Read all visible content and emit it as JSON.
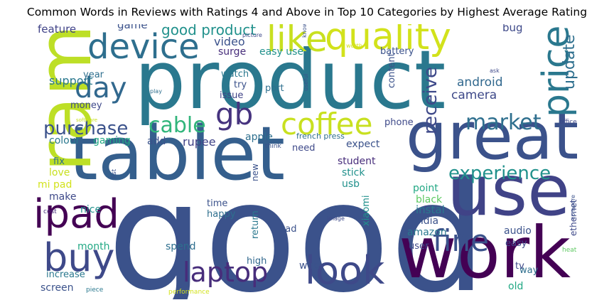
{
  "title": "Common Words in Reviews with Ratings 4 and Above in Top 10 Categories by Highest Average Rating",
  "words": [
    {
      "text": "good",
      "color": "#3b528b"
    },
    {
      "text": "product",
      "color": "#2a788e"
    },
    {
      "text": "tablet",
      "color": "#355f8d"
    },
    {
      "text": "work",
      "color": "#440154"
    },
    {
      "text": "use",
      "color": "#404387"
    },
    {
      "text": "great",
      "color": "#3b528b"
    },
    {
      "text": "ram",
      "color": "#bddf26"
    },
    {
      "text": "quality",
      "color": "#d2e21b"
    },
    {
      "text": "like",
      "color": "#c8e020"
    },
    {
      "text": "device",
      "color": "#2e6f8e"
    },
    {
      "text": "price",
      "color": "#2a788e"
    },
    {
      "text": "ipad",
      "color": "#440154"
    },
    {
      "text": "buy",
      "color": "#3e4989"
    },
    {
      "text": "laptop",
      "color": "#472d7b"
    },
    {
      "text": "look",
      "color": "#3e4989"
    },
    {
      "text": "coffee",
      "color": "#c8e020"
    },
    {
      "text": "day",
      "color": "#31688e"
    },
    {
      "text": "gb",
      "color": "#46337f"
    },
    {
      "text": "fine",
      "color": "#3b528b"
    },
    {
      "text": "cable",
      "color": "#31b57b"
    },
    {
      "text": "experience",
      "color": "#21918c"
    },
    {
      "text": "market",
      "color": "#2e6f8e"
    },
    {
      "text": "receive",
      "color": "#3e4989"
    },
    {
      "text": "purchase",
      "color": "#3b528b"
    },
    {
      "text": "update",
      "color": "#2e6f8e"
    },
    {
      "text": "good product",
      "color": "#21918c"
    },
    {
      "text": "android",
      "color": "#31688e"
    },
    {
      "text": "camera",
      "color": "#3e4989"
    },
    {
      "text": "support",
      "color": "#2a788e"
    },
    {
      "text": "feature",
      "color": "#404387"
    },
    {
      "text": "game",
      "color": "#3b528b"
    },
    {
      "text": "video",
      "color": "#3b528b"
    },
    {
      "text": "bug",
      "color": "#3e4989"
    },
    {
      "text": "surge",
      "color": "#472d7b"
    },
    {
      "text": "easy use",
      "color": "#21918c"
    },
    {
      "text": "battery",
      "color": "#3b528b"
    },
    {
      "text": "year",
      "color": "#2e6f8e"
    },
    {
      "text": "money",
      "color": "#3e4989"
    },
    {
      "text": "watch",
      "color": "#2a788e"
    },
    {
      "text": "try",
      "color": "#3b528b"
    },
    {
      "text": "issue",
      "color": "#404387"
    },
    {
      "text": "port",
      "color": "#2e6f8e"
    },
    {
      "text": "content",
      "color": "#3b528b"
    },
    {
      "text": "phone",
      "color": "#3e4989"
    },
    {
      "text": "colour",
      "color": "#2a788e"
    },
    {
      "text": "gaming",
      "color": "#22a884"
    },
    {
      "text": "add",
      "color": "#3b528b"
    },
    {
      "text": "rupee",
      "color": "#404387"
    },
    {
      "text": "apple",
      "color": "#2e6f8e"
    },
    {
      "text": "need",
      "color": "#3e4989"
    },
    {
      "text": "expect",
      "color": "#3b528b"
    },
    {
      "text": "fix",
      "color": "#2e6f8e"
    },
    {
      "text": "love",
      "color": "#c8e020"
    },
    {
      "text": "mi pad",
      "color": "#d2e21b"
    },
    {
      "text": "student",
      "color": "#472d7b"
    },
    {
      "text": "stick",
      "color": "#21918c"
    },
    {
      "text": "usb",
      "color": "#21918c"
    },
    {
      "text": "make",
      "color": "#3e4989"
    },
    {
      "text": "point",
      "color": "#22a884"
    },
    {
      "text": "black",
      "color": "#5ec962"
    },
    {
      "text": "instal",
      "color": "#2a788e"
    },
    {
      "text": "nice",
      "color": "#21918c"
    },
    {
      "text": "time",
      "color": "#3b528b"
    },
    {
      "text": "happy",
      "color": "#2e6f8e"
    },
    {
      "text": "india",
      "color": "#3b528b"
    },
    {
      "text": "amazon",
      "color": "#2a788e"
    },
    {
      "text": "audio",
      "color": "#3b528b"
    },
    {
      "text": "easy",
      "color": "#3e4989"
    },
    {
      "text": "month",
      "color": "#22a884"
    },
    {
      "text": "spend",
      "color": "#2e6f8e"
    },
    {
      "text": "bad",
      "color": "#3b528b"
    },
    {
      "text": "xiaomi",
      "color": "#21918c"
    },
    {
      "text": "user",
      "color": "#3e4989"
    },
    {
      "text": "return",
      "color": "#2a788e"
    },
    {
      "text": "high",
      "color": "#31688e"
    },
    {
      "text": "wire",
      "color": "#3b528b"
    },
    {
      "text": "tv",
      "color": "#3e4989"
    },
    {
      "text": "way",
      "color": "#2e6f8e"
    },
    {
      "text": "old",
      "color": "#22a884"
    },
    {
      "text": "increase",
      "color": "#2a788e"
    },
    {
      "text": "screen",
      "color": "#3b528b"
    },
    {
      "text": "new",
      "color": "#3b528b"
    },
    {
      "text": "ethernet",
      "color": "#3e4989"
    },
    {
      "text": "french press",
      "color": "#2e6f8e"
    },
    {
      "text": "think",
      "color": "#3b528b"
    },
    {
      "text": "list",
      "color": "#3b528b"
    },
    {
      "text": "image",
      "color": "#3e4989"
    },
    {
      "text": "compare",
      "color": "#3b528b"
    },
    {
      "text": "cost",
      "color": "#472d7b"
    },
    {
      "text": "piece",
      "color": "#2a788e"
    },
    {
      "text": "performance",
      "color": "#d2e21b"
    },
    {
      "text": "heat",
      "color": "#5ec962"
    },
    {
      "text": "office",
      "color": "#3e4989"
    },
    {
      "text": "software",
      "color": "#c8e020"
    },
    {
      "text": "play",
      "color": "#2e6f8e"
    },
    {
      "text": "useful",
      "color": "#3b528b"
    },
    {
      "text": "ask",
      "color": "#3e4989"
    },
    {
      "text": "know",
      "color": "#3b528b"
    },
    {
      "text": "worth",
      "color": "#d2e21b"
    },
    {
      "text": "picture",
      "color": "#3e4989"
    }
  ]
}
